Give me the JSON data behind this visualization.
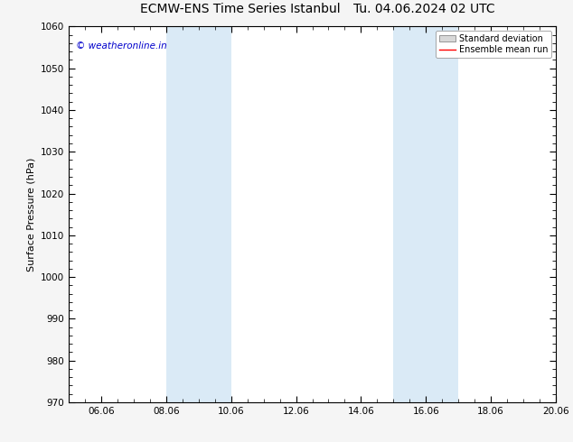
{
  "title": "ECMW-ENS Time Series Istanbul",
  "title2": "Tu. 04.06.2024 02 UTC",
  "ylabel": "Surface Pressure (hPa)",
  "ylim": [
    970,
    1060
  ],
  "yticks": [
    970,
    980,
    990,
    1000,
    1010,
    1020,
    1030,
    1040,
    1050,
    1060
  ],
  "x_start_days": 0,
  "x_end_days": 15,
  "xlim": [
    0,
    15
  ],
  "xtick_labels": [
    "06.06",
    "08.06",
    "10.06",
    "12.06",
    "14.06",
    "16.06",
    "18.06",
    "20.06"
  ],
  "xtick_days": [
    1,
    3,
    5,
    7,
    9,
    11,
    13,
    15
  ],
  "shade_bands": [
    {
      "start": 3,
      "end": 4.5
    },
    {
      "start": 4.5,
      "end": 5
    }
  ],
  "shade_bands2": [
    {
      "start": 10,
      "end": 11.5
    },
    {
      "start": 11.5,
      "end": 12
    }
  ],
  "shade_color": "#daeaf6",
  "background_color": "#f5f5f5",
  "plot_bg_color": "#ffffff",
  "legend_std_color": "#c8c8c8",
  "legend_mean_color": "#ff0000",
  "watermark_text": "© weatheronline.in",
  "watermark_color": "#0000cc",
  "title_fontsize": 10,
  "axis_label_fontsize": 8,
  "tick_fontsize": 7.5
}
